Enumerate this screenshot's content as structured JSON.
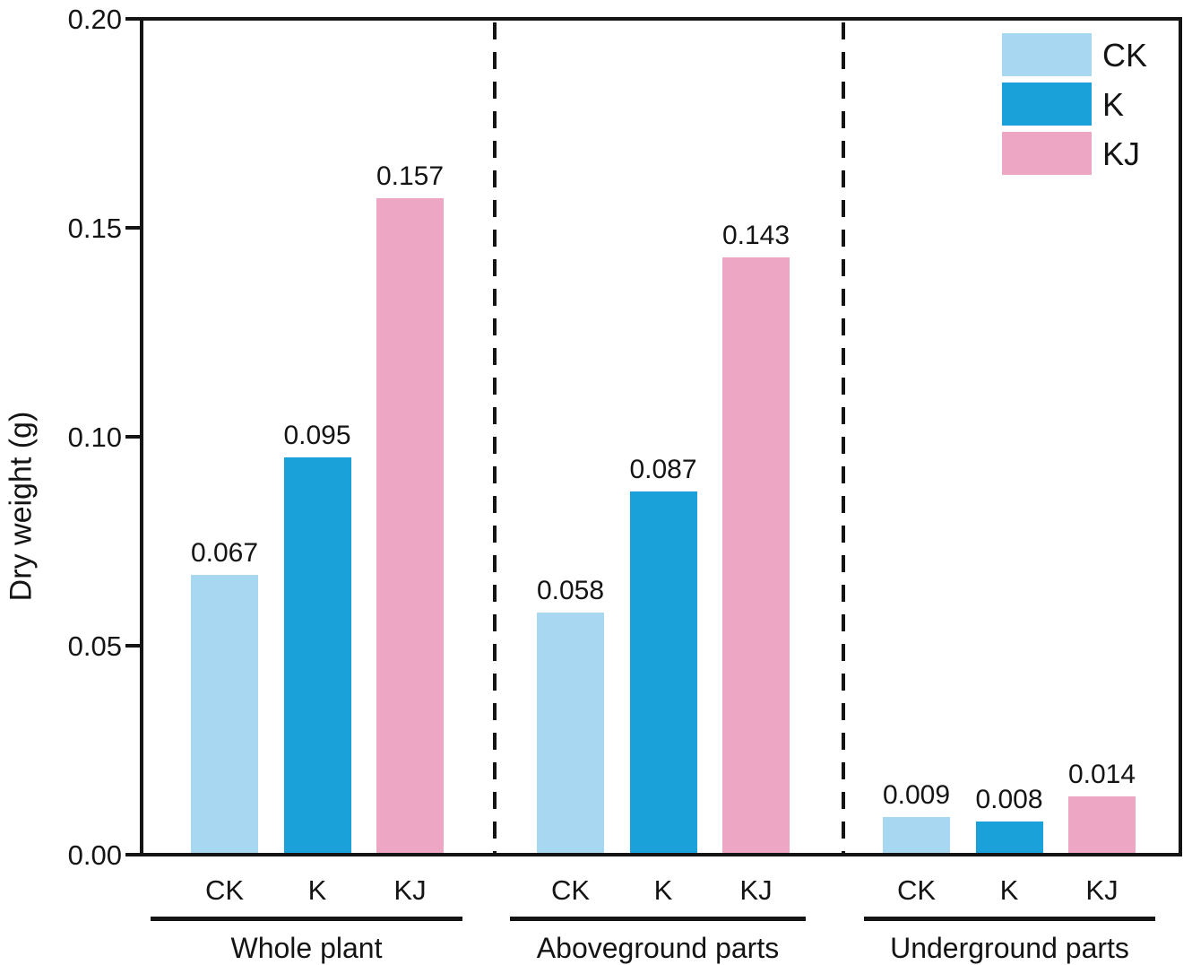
{
  "chart_data": {
    "type": "bar",
    "title": "",
    "ylabel": "Dry weight (g)",
    "xlabel": "",
    "ylim": [
      0,
      0.2
    ],
    "yticks": [
      {
        "label": "0.20",
        "value": 0.2
      },
      {
        "label": "0.15",
        "value": 0.15
      },
      {
        "label": "0.10",
        "value": 0.1
      },
      {
        "label": "0.05",
        "value": 0.05
      },
      {
        "label": "0.00",
        "value": 0.0
      }
    ],
    "categories": [
      "CK",
      "K",
      "KJ"
    ],
    "groups": [
      {
        "label": "Whole plant",
        "values": [
          0.067,
          0.095,
          0.157
        ],
        "value_labels": [
          "0.067",
          "0.095",
          "0.157"
        ]
      },
      {
        "label": "Aboveground parts",
        "values": [
          0.058,
          0.087,
          0.143
        ],
        "value_labels": [
          "0.058",
          "0.087",
          "0.143"
        ]
      },
      {
        "label": "Underground parts",
        "values": [
          0.009,
          0.008,
          0.014
        ],
        "value_labels": [
          "0.009",
          "0.008",
          "0.014"
        ]
      }
    ],
    "series": [
      {
        "name": "CK",
        "color": "#a8d7f1"
      },
      {
        "name": "K",
        "color": "#1aa1da"
      },
      {
        "name": "KJ",
        "color": "#eda7c4"
      }
    ],
    "legend": {
      "position": "top-right",
      "entries": [
        {
          "label": "CK",
          "color": "#a8d7f1"
        },
        {
          "label": "K",
          "color": "#1aa1da"
        },
        {
          "label": "KJ",
          "color": "#eda7c4"
        }
      ]
    },
    "grid": false,
    "separator_style": "dashed-vertical-between-groups",
    "axis_color": "#141414",
    "text_color": "#141414",
    "background_color": "#ffffff"
  }
}
